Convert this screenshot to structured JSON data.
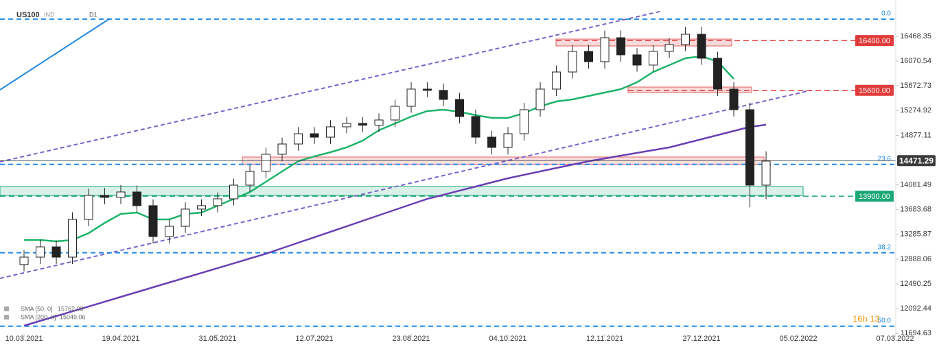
{
  "chart_data": {
    "type": "candlestick",
    "title": "US100",
    "instrument_type": "IND",
    "timeframe": "D1",
    "countdown": "16h 13",
    "x": [
      0,
      5,
      10,
      15,
      20,
      25,
      30,
      35,
      40,
      45,
      50,
      55,
      60,
      65,
      70,
      75,
      80,
      85,
      90,
      95,
      100,
      105,
      110,
      115,
      120,
      125,
      130,
      135,
      140,
      145,
      150,
      155,
      160,
      165,
      170,
      175,
      180,
      185,
      190,
      195,
      200,
      205,
      210,
      215,
      220,
      225,
      230
    ],
    "open": [
      12800,
      12920,
      13085,
      12920,
      13526,
      13912,
      13880,
      13967,
      13747,
      13251,
      13416,
      13692,
      13747,
      13857,
      14077,
      14298,
      14573,
      14738,
      14903,
      14848,
      15014,
      15069,
      15040,
      15124,
      15344,
      15620,
      15600,
      15454,
      15179,
      14848,
      14683,
      14903,
      15289,
      15620,
      15895,
      16226,
      16061,
      16446,
      16171,
      16006,
      16226,
      16336,
      16501,
      16116,
      15620,
      15289,
      14077
    ],
    "high": [
      13030,
      13200,
      13190,
      13640,
      14020,
      14030,
      14080,
      14070,
      13850,
      13520,
      13800,
      13850,
      13960,
      14180,
      14400,
      14680,
      14840,
      15010,
      15010,
      15120,
      15170,
      15170,
      15230,
      15450,
      15730,
      15730,
      15710,
      15560,
      15290,
      14950,
      15010,
      15400,
      15730,
      16000,
      16330,
      16330,
      16560,
      16560,
      16280,
      16330,
      16440,
      16620,
      16620,
      16220,
      15730,
      15400,
      14620
    ],
    "low": [
      12690,
      12810,
      12810,
      12810,
      13420,
      13770,
      13770,
      13640,
      13140,
      13140,
      13310,
      13580,
      13640,
      13750,
      13970,
      14190,
      14460,
      14630,
      14740,
      14740,
      14910,
      14930,
      14930,
      15010,
      15240,
      15490,
      15350,
      15070,
      14740,
      14570,
      14570,
      14790,
      15180,
      15510,
      15790,
      15950,
      15950,
      16060,
      15900,
      15900,
      16120,
      16230,
      16010,
      15510,
      15180,
      13720,
      13850
    ],
    "close": [
      12920,
      13085,
      12920,
      13526,
      13912,
      13880,
      13967,
      13747,
      13251,
      13416,
      13692,
      13747,
      13857,
      14077,
      14298,
      14573,
      14738,
      14903,
      14848,
      15014,
      15069,
      15040,
      15124,
      15344,
      15620,
      15600,
      15454,
      15179,
      14848,
      14683,
      14903,
      15289,
      15620,
      15895,
      16226,
      16061,
      16446,
      16171,
      16006,
      16226,
      16336,
      16501,
      16116,
      15620,
      15289,
      14077,
      14463
    ],
    "up_color": "#ffffff",
    "down_color": "#222222",
    "overlays": [
      {
        "name": "SMA [50, 0]",
        "last": 15762.08,
        "color": "#1db36a",
        "values": [
          13195,
          13195,
          13173,
          13195,
          13305,
          13470,
          13614,
          13636,
          13526,
          13526,
          13614,
          13636,
          13746,
          13856,
          13966,
          14132,
          14297,
          14462,
          14539,
          14606,
          14683,
          14793,
          14958,
          15068,
          15179,
          15267,
          15289,
          15256,
          15201,
          15157,
          15157,
          15234,
          15344,
          15421,
          15454,
          15509,
          15565,
          15620,
          15730,
          15895,
          16005,
          16115,
          16148,
          16060,
          15785,
          null,
          null
        ]
      },
      {
        "name": "SMA [200, 0]",
        "last": 15049.06,
        "color": "#6a3fb5",
        "values": [
          11818,
          11895,
          11972,
          12049,
          12126,
          12203,
          12281,
          12358,
          12435,
          12512,
          12589,
          12666,
          12743,
          12820,
          12898,
          12975,
          13063,
          13151,
          13239,
          13327,
          13415,
          13504,
          13592,
          13680,
          13768,
          13856,
          13922,
          13988,
          14055,
          14121,
          14187,
          14242,
          14297,
          14352,
          14407,
          14462,
          14506,
          14551,
          14595,
          14639,
          14683,
          14749,
          14815,
          14881,
          14947,
          15014,
          15047
        ]
      }
    ],
    "last_price": 14471.29,
    "levels": [
      {
        "value": 16400,
        "label": "16400.00",
        "color": "#e03b3b"
      },
      {
        "value": 15600,
        "label": "15600.00",
        "color": "#e03b3b"
      },
      {
        "value": 13900,
        "label": "13900.00",
        "color": "#1aa876"
      }
    ],
    "fib_levels": [
      {
        "value": 16745,
        "label": "0.0"
      },
      {
        "value": 14410,
        "label": "23.6"
      },
      {
        "value": 12990,
        "label": "38.2"
      },
      {
        "value": 11810,
        "label": "50.0"
      }
    ],
    "fib_color": "#1e88e5",
    "xlim": [
      -7.45,
      270.2
    ],
    "xticks": [
      {
        "value": 0,
        "label": "10.03.2021"
      },
      {
        "value": 30,
        "label": "19.04.2021"
      },
      {
        "value": 60,
        "label": "31.05.2021"
      },
      {
        "value": 90,
        "label": "12.07.2021"
      },
      {
        "value": 120,
        "label": "23.08.2021"
      },
      {
        "value": 150,
        "label": "04.10.2021"
      },
      {
        "value": 180,
        "label": "12.11.2021"
      },
      {
        "value": 210,
        "label": "27.12.2021"
      },
      {
        "value": 240,
        "label": "05.02.2022"
      },
      {
        "value": 270,
        "label": "07.03.2022"
      }
    ],
    "ylim": [
      11686,
      17052
    ],
    "yticks": [
      16468.35,
      16070.54,
      15672.73,
      15274.92,
      14877.11,
      14081.49,
      13683.68,
      13285.87,
      12888.06,
      12490.25,
      12092.44,
      11694.63
    ]
  }
}
